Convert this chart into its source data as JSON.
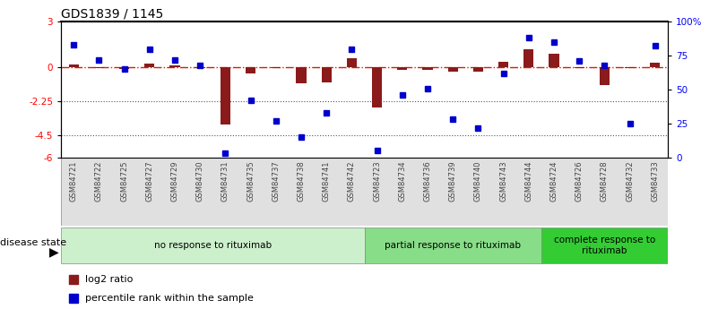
{
  "title": "GDS1839 / 1145",
  "samples": [
    "GSM84721",
    "GSM84722",
    "GSM84725",
    "GSM84727",
    "GSM84729",
    "GSM84730",
    "GSM84731",
    "GSM84735",
    "GSM84737",
    "GSM84738",
    "GSM84741",
    "GSM84742",
    "GSM84723",
    "GSM84734",
    "GSM84736",
    "GSM84739",
    "GSM84740",
    "GSM84743",
    "GSM84744",
    "GSM84724",
    "GSM84726",
    "GSM84728",
    "GSM84732",
    "GSM84733"
  ],
  "log2_ratio": [
    0.15,
    -0.05,
    -0.15,
    0.25,
    0.1,
    -0.05,
    -3.8,
    -0.45,
    -0.1,
    -1.1,
    -1.0,
    0.55,
    -2.7,
    -0.2,
    -0.2,
    -0.3,
    -0.3,
    0.35,
    1.2,
    0.85,
    -0.1,
    -1.2,
    -0.05,
    0.3
  ],
  "percentile_rank": [
    83,
    72,
    65,
    80,
    72,
    68,
    3,
    42,
    27,
    15,
    33,
    80,
    5,
    46,
    51,
    28,
    22,
    62,
    88,
    85,
    71,
    68,
    25,
    82
  ],
  "groups": [
    {
      "label": "no response to rituximab",
      "start": 0,
      "end": 12,
      "color": "#ccf0cc"
    },
    {
      "label": "partial response to rituximab",
      "start": 12,
      "end": 19,
      "color": "#88dd88"
    },
    {
      "label": "complete response to\nrituximab",
      "start": 19,
      "end": 24,
      "color": "#33cc33"
    }
  ],
  "ylim_left": [
    -6,
    3
  ],
  "ylim_right": [
    0,
    100
  ],
  "left_ticks": [
    3,
    0,
    -2.25,
    -4.5,
    -6
  ],
  "right_ticks": [
    100,
    75,
    50,
    25,
    0
  ],
  "left_tick_labels": [
    "3",
    "0",
    "-2.25",
    "-4.5",
    "-6"
  ],
  "right_tick_labels": [
    "100%",
    "75",
    "50",
    "25",
    "0"
  ],
  "bar_color": "#8b1a1a",
  "dot_color": "#0000cc",
  "hline_color": "#cc2200",
  "dotted_line_color": "#555555",
  "sample_label_color": "#444444",
  "group_border_color": "#888888",
  "title_fontsize": 10,
  "tick_fontsize": 7.5,
  "sample_fontsize": 6,
  "group_fontsize": 7.5,
  "legend_fontsize": 8,
  "bar_width": 0.4
}
